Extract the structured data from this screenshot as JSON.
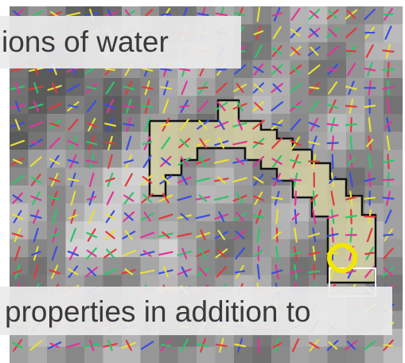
{
  "captions": {
    "top": "ions of water",
    "bottom": "properties in addition to"
  },
  "colors": {
    "region_fill": "#d4cfa2",
    "region_outline": "#111111",
    "highlight_circle": "#f2e600",
    "stroke_magenta": "#e0359a",
    "stroke_red": "#e23a3a",
    "stroke_blue": "#3b4ee0",
    "stroke_green": "#2fc46c",
    "stroke_yellow": "#e8e03a"
  },
  "icons": {
    "glyph_grid": "orientation-glyph-field",
    "highlight": "circle-marker"
  }
}
